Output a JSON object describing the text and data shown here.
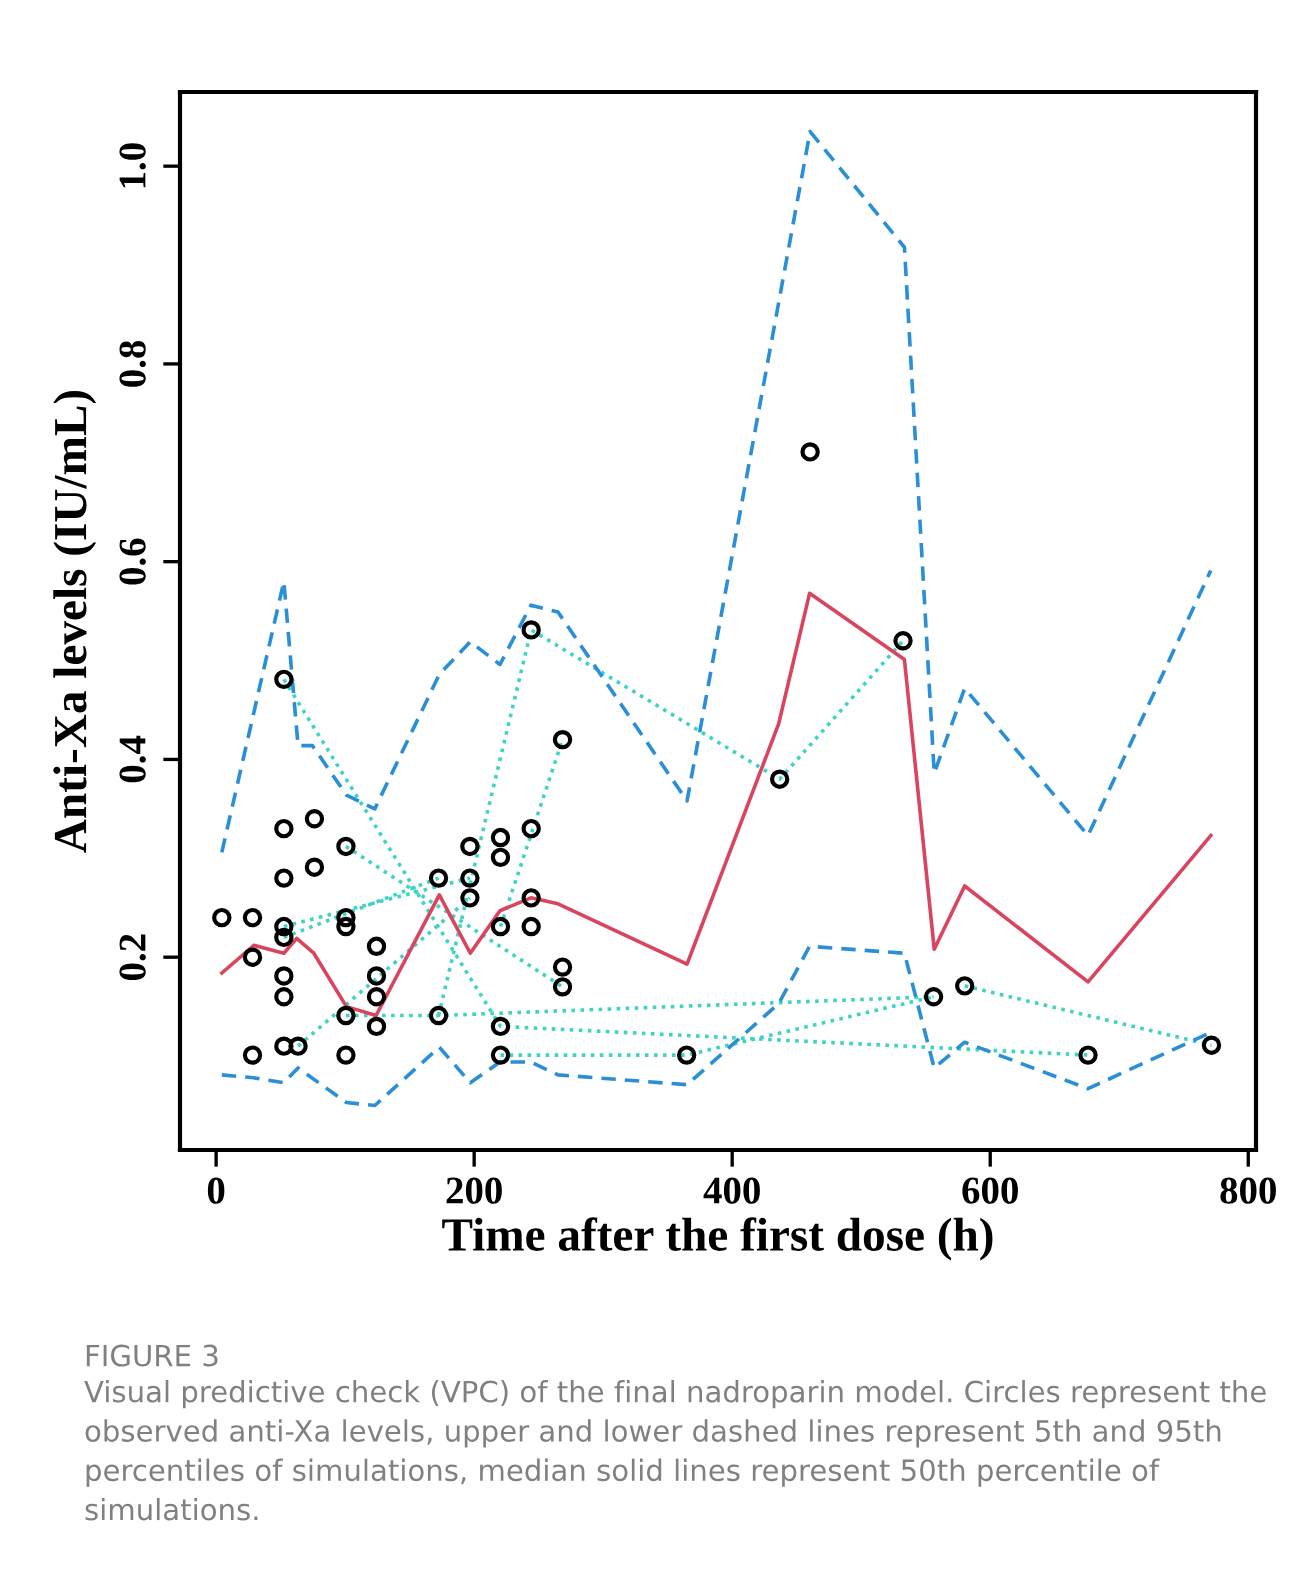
{
  "chart_data": {
    "type": "line",
    "xlabel": "Time after the first dose (h)",
    "ylabel": "Anti-Xa levels (IU/mL)",
    "xlim": [
      -28,
      806
    ],
    "ylim": [
      0.005,
      1.075
    ],
    "xticks": [
      0,
      200,
      400,
      600,
      800
    ],
    "yticks": [
      0.2,
      0.4,
      0.6,
      0.8,
      {
        "value": 1.0,
        "label": "1.0"
      }
    ],
    "grid": false,
    "legend": false,
    "series": [
      {
        "type": "line",
        "line_style": "dotted",
        "color": "#3fd3c6",
        "x": [
          52.5,
          220.4,
          675.8
        ],
        "values": [
          0.481,
          0.13,
          0.101
        ]
      },
      {
        "type": "line",
        "line_style": "dotted",
        "color": "#3fd3c6",
        "x": [
          100.6,
          268.5
        ],
        "values": [
          0.312,
          0.17
        ]
      },
      {
        "type": "line",
        "line_style": "dotted",
        "color": "#3fd3c6",
        "x": [
          52.5,
          196.7
        ],
        "values": [
          0.231,
          0.28
        ]
      },
      {
        "type": "line",
        "line_style": "dotted",
        "color": "#3fd3c6",
        "x": [
          52.5,
          172.4
        ],
        "values": [
          0.22,
          0.28
        ]
      },
      {
        "type": "line",
        "line_style": "dotted",
        "color": "#3fd3c6",
        "x": [
          63.5,
          196.7
        ],
        "values": [
          0.11,
          0.26
        ]
      },
      {
        "type": "line",
        "line_style": "dotted",
        "color": "#3fd3c6",
        "x": [
          100.6,
          172.4,
          556.1
        ],
        "values": [
          0.141,
          0.141,
          0.16
        ]
      },
      {
        "type": "line",
        "line_style": "dotted",
        "color": "#3fd3c6",
        "x": [
          172.4,
          244.2,
          436.8,
          532.4
        ],
        "values": [
          0.141,
          0.531,
          0.38,
          0.52
        ]
      },
      {
        "type": "line",
        "line_style": "dotted",
        "color": "#3fd3c6",
        "x": [
          220.4,
          364.7,
          556.1
        ],
        "values": [
          0.101,
          0.101,
          0.16
        ]
      },
      {
        "type": "line",
        "line_style": "dotted",
        "color": "#3fd3c6",
        "x": [
          220.4,
          268.5
        ],
        "values": [
          0.231,
          0.42
        ]
      },
      {
        "type": "line",
        "line_style": "dotted",
        "color": "#3fd3c6",
        "x": [
          580.2,
          771.5
        ],
        "values": [
          0.171,
          0.111
        ]
      },
      {
        "line_style": "dashed",
        "color": "#2a8fd6",
        "x": [
          4.4,
          52.5,
          63.5,
          74.6,
          101,
          123,
          173,
          197,
          220,
          244,
          265,
          365,
          460.4,
          533.5,
          556.6,
          580.2,
          675.8,
          770.9
        ],
        "values": [
          0.306,
          0.58,
          0.414,
          0.414,
          0.364,
          0.35,
          0.486,
          0.519,
          0.496,
          0.556,
          0.549,
          0.358,
          1.035,
          0.918,
          0.386,
          0.472,
          0.323,
          0.591
        ]
      },
      {
        "line_style": "solid",
        "color": "#d9455f",
        "x": [
          4.4,
          29.3,
          52.5,
          62.4,
          75.7,
          101,
          124,
          173,
          197,
          220,
          244,
          265,
          365,
          436,
          460,
          533.5,
          556.6,
          580.2,
          675.8,
          771
        ],
        "values": [
          0.184,
          0.212,
          0.204,
          0.219,
          0.204,
          0.15,
          0.141,
          0.263,
          0.204,
          0.247,
          0.26,
          0.254,
          0.193,
          0.436,
          0.568,
          0.501,
          0.208,
          0.272,
          0.175,
          0.323
        ]
      },
      {
        "line_style": "dashed",
        "color": "#2a8fd6",
        "x": [
          4.4,
          29,
          52.5,
          63.5,
          101,
          123,
          173,
          197,
          220,
          244,
          265,
          365,
          436,
          460,
          533.5,
          556.6,
          580.2,
          675.8,
          771
        ],
        "values": [
          0.081,
          0.078,
          0.073,
          0.088,
          0.053,
          0.05,
          0.109,
          0.073,
          0.094,
          0.094,
          0.081,
          0.071,
          0.153,
          0.211,
          0.204,
          0.088,
          0.114,
          0.067,
          0.124
        ]
      },
      {
        "type": "scatter",
        "marker": "circle",
        "color": "#000000",
        "x": [
          4.4,
          28.2,
          28.2,
          28.2,
          52.5,
          52.5,
          52.5,
          52.5,
          52.5,
          52.5,
          52.5,
          52.5,
          63.5,
          76.2,
          76.2,
          100.6,
          100.6,
          100.6,
          100.6,
          100.6,
          124.3,
          124.3,
          124.3,
          124.3,
          172.4,
          172.4,
          196.7,
          196.7,
          196.7,
          220.4,
          220.4,
          220.4,
          220.4,
          220.4,
          244.2,
          244.2,
          244.2,
          244.2,
          268.5,
          268.5,
          268.5,
          364.7,
          436.8,
          460.4,
          532.4,
          556.1,
          580.2,
          675.8,
          771.5
        ],
        "values": [
          0.24,
          0.24,
          0.2,
          0.101,
          0.481,
          0.33,
          0.28,
          0.231,
          0.22,
          0.181,
          0.16,
          0.11,
          0.11,
          0.34,
          0.291,
          0.312,
          0.24,
          0.231,
          0.141,
          0.101,
          0.211,
          0.181,
          0.16,
          0.13,
          0.28,
          0.141,
          0.312,
          0.28,
          0.26,
          0.321,
          0.301,
          0.231,
          0.13,
          0.101,
          0.531,
          0.33,
          0.26,
          0.231,
          0.42,
          0.19,
          0.17,
          0.101,
          0.38,
          0.711,
          0.52,
          0.16,
          0.171,
          0.101,
          0.111
        ]
      }
    ],
    "annotations": [
      "FIGURE 3",
      "Visual predictive check (VPC) of the final nadroparin model. Circles represent the observed anti-Xa levels, upper and lower dashed lines represent 5th and 95th percentiles of simulations, median solid lines represent 50th percentile of simulations."
    ]
  }
}
